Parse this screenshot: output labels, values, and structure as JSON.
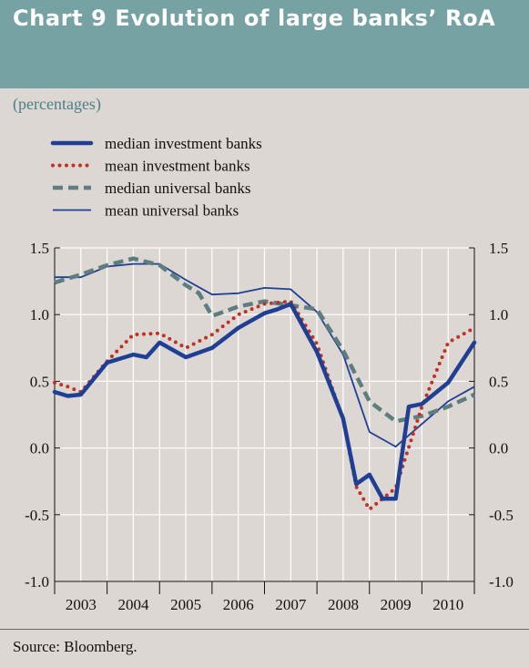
{
  "header": {
    "title": "Chart 9 Evolution of large banks’ RoA",
    "units": "(percentages)"
  },
  "footer": {
    "source": "Source: Bloomberg."
  },
  "colors": {
    "header_bg": "#77a2a3",
    "page_bg": "#dcd7d3",
    "median_investment": "#1f3f94",
    "mean_investment": "#bd3223",
    "median_universal": "#5e7d7f",
    "mean_universal": "#1f3f94"
  },
  "chart_data": {
    "type": "line",
    "title": "Chart 9 Evolution of large banks’ RoA",
    "ylabel": "(percentages)",
    "ylim": [
      -1.0,
      1.5
    ],
    "y_ticks": [
      "1.5",
      "1.0",
      "0.5",
      "0.0",
      "-0.5",
      "-1.0"
    ],
    "y_tick_values": [
      1.5,
      1.0,
      0.5,
      0.0,
      -0.5,
      -1.0
    ],
    "x_categories": [
      "2003",
      "2004",
      "2005",
      "2006",
      "2007",
      "2008",
      "2009",
      "2010"
    ],
    "x_domain": [
      0,
      16
    ],
    "grid": true,
    "legend_position": "top-left",
    "series": [
      {
        "name": "median investment banks",
        "style": "thick-solid",
        "x": [
          0,
          0.5,
          1,
          2,
          2.5,
          3,
          3.5,
          4,
          5,
          6,
          7,
          8,
          8.5,
          9,
          10,
          11,
          11.5,
          12,
          12.5,
          13,
          13.5,
          14,
          15,
          16
        ],
        "values": [
          0.42,
          0.39,
          0.4,
          0.64,
          0.67,
          0.7,
          0.68,
          0.79,
          0.68,
          0.75,
          0.9,
          1.01,
          1.04,
          1.08,
          0.72,
          0.22,
          -0.27,
          -0.2,
          -0.38,
          -0.38,
          0.31,
          0.33,
          0.49,
          0.79
        ]
      },
      {
        "name": "mean investment banks",
        "style": "dotted",
        "x": [
          0,
          0.5,
          1,
          2,
          3,
          4,
          5,
          6,
          7,
          8,
          9,
          10,
          11,
          11.5,
          12,
          13,
          14,
          15,
          16
        ],
        "values": [
          0.49,
          0.46,
          0.42,
          0.65,
          0.85,
          0.86,
          0.75,
          0.85,
          1.0,
          1.08,
          1.1,
          0.78,
          0.21,
          -0.29,
          -0.46,
          -0.3,
          0.31,
          0.79,
          0.9
        ]
      },
      {
        "name": "median universal banks",
        "style": "thick-dashed",
        "x": [
          0,
          1,
          2,
          3,
          4,
          5,
          5.5,
          6,
          7,
          8,
          9,
          10,
          11,
          12,
          13,
          14,
          15,
          16
        ],
        "values": [
          1.24,
          1.3,
          1.37,
          1.42,
          1.37,
          1.22,
          1.16,
          0.99,
          1.06,
          1.1,
          1.07,
          1.04,
          0.73,
          0.35,
          0.2,
          0.24,
          0.31,
          0.4
        ]
      },
      {
        "name": "mean universal banks",
        "style": "thin-solid",
        "x": [
          0,
          1,
          2,
          3,
          4,
          5,
          6,
          7,
          8,
          9,
          10,
          11,
          12,
          13,
          14,
          15,
          16
        ],
        "values": [
          1.28,
          1.28,
          1.36,
          1.38,
          1.38,
          1.26,
          1.15,
          1.16,
          1.2,
          1.19,
          1.02,
          0.7,
          0.12,
          0.01,
          0.18,
          0.35,
          0.46
        ]
      }
    ]
  }
}
